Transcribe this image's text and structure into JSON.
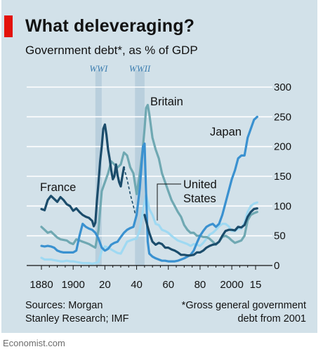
{
  "header": {
    "title": "What deleveraging?",
    "subtitle": "Government debt*, as % of GDP"
  },
  "footer": {
    "sources": "Sources: Morgan\nStanley Research; IMF",
    "footnote": "*Gross general government\ndebt from 2001",
    "brand": "Economist.com"
  },
  "colors": {
    "background": "#d2e1e9",
    "accent": "#e3120b",
    "war_band": "#b9cfdd",
    "gridline": "#ffffff",
    "france": "#1b4c6b",
    "britain": "#6fa8b2",
    "japan": "#3a91d0",
    "united_states": "#9fd9f2"
  },
  "chart_data": {
    "type": "line",
    "title": "What deleveraging?",
    "subtitle": "Government debt*, as % of GDP",
    "xlabel": "",
    "ylabel": "",
    "xlim": [
      1875,
      2020
    ],
    "ylim": [
      0,
      300
    ],
    "x_tick_labels": [
      "1880",
      "1900",
      "20",
      "40",
      "60",
      "80",
      "2000",
      "15"
    ],
    "x_tick_years": [
      1880,
      1900,
      1920,
      1940,
      1960,
      1980,
      2000,
      2015
    ],
    "y_ticks": [
      0,
      50,
      100,
      150,
      200,
      250,
      300
    ],
    "y_axis_side": "right",
    "grid": "horizontal",
    "shaded_periods": [
      {
        "label": "WWI",
        "start": 1914,
        "end": 1918
      },
      {
        "label": "WWII",
        "start": 1939,
        "end": 1945
      }
    ],
    "series": [
      {
        "name": "France",
        "points": [
          [
            1880,
            95
          ],
          [
            1882,
            93
          ],
          [
            1884,
            110
          ],
          [
            1886,
            117
          ],
          [
            1888,
            112
          ],
          [
            1890,
            107
          ],
          [
            1892,
            115
          ],
          [
            1894,
            110
          ],
          [
            1896,
            103
          ],
          [
            1898,
            100
          ],
          [
            1900,
            92
          ],
          [
            1902,
            96
          ],
          [
            1904,
            90
          ],
          [
            1906,
            85
          ],
          [
            1908,
            82
          ],
          [
            1910,
            80
          ],
          [
            1912,
            75
          ],
          [
            1913,
            66
          ],
          [
            1914,
            72
          ],
          [
            1915,
            110
          ],
          [
            1916,
            140
          ],
          [
            1917,
            175
          ],
          [
            1918,
            200
          ],
          [
            1919,
            230
          ],
          [
            1920,
            237
          ],
          [
            1921,
            220
          ],
          [
            1922,
            195
          ],
          [
            1923,
            180
          ],
          [
            1924,
            160
          ],
          [
            1925,
            145
          ],
          [
            1926,
            150
          ],
          [
            1927,
            170
          ],
          [
            1928,
            152
          ],
          [
            1929,
            140
          ],
          [
            1930,
            133
          ],
          [
            1931,
            150
          ],
          [
            1932,
            165
          ]
        ],
        "dashed_points": [
          [
            1932,
            165
          ],
          [
            1934,
            145
          ],
          [
            1936,
            120
          ],
          [
            1938,
            100
          ],
          [
            1939,
            88
          ]
        ],
        "points_2": [
          [
            1945,
            85
          ],
          [
            1946,
            75
          ],
          [
            1948,
            55
          ],
          [
            1950,
            40
          ],
          [
            1952,
            35
          ],
          [
            1954,
            38
          ],
          [
            1956,
            36
          ],
          [
            1958,
            30
          ],
          [
            1960,
            30
          ],
          [
            1962,
            27
          ],
          [
            1964,
            25
          ],
          [
            1966,
            22
          ],
          [
            1968,
            18
          ],
          [
            1970,
            18
          ],
          [
            1972,
            17
          ],
          [
            1974,
            17
          ],
          [
            1976,
            18
          ],
          [
            1978,
            22
          ],
          [
            1980,
            22
          ],
          [
            1982,
            25
          ],
          [
            1984,
            30
          ],
          [
            1986,
            33
          ],
          [
            1988,
            35
          ],
          [
            1990,
            36
          ],
          [
            1992,
            40
          ],
          [
            1994,
            50
          ],
          [
            1996,
            58
          ],
          [
            1998,
            60
          ],
          [
            2000,
            60
          ],
          [
            2002,
            59
          ],
          [
            2004,
            65
          ],
          [
            2006,
            64
          ],
          [
            2008,
            68
          ],
          [
            2010,
            82
          ],
          [
            2012,
            90
          ],
          [
            2014,
            95
          ],
          [
            2016,
            96
          ]
        ]
      },
      {
        "name": "Britain",
        "points": [
          [
            1880,
            65
          ],
          [
            1882,
            60
          ],
          [
            1884,
            55
          ],
          [
            1886,
            57
          ],
          [
            1888,
            52
          ],
          [
            1890,
            47
          ],
          [
            1892,
            44
          ],
          [
            1894,
            43
          ],
          [
            1896,
            42
          ],
          [
            1898,
            38
          ],
          [
            1900,
            36
          ],
          [
            1902,
            44
          ],
          [
            1904,
            42
          ],
          [
            1906,
            40
          ],
          [
            1908,
            38
          ],
          [
            1910,
            36
          ],
          [
            1912,
            33
          ],
          [
            1914,
            30
          ],
          [
            1916,
            60
          ],
          [
            1918,
            125
          ],
          [
            1920,
            140
          ],
          [
            1922,
            155
          ],
          [
            1924,
            175
          ],
          [
            1926,
            170
          ],
          [
            1928,
            165
          ],
          [
            1930,
            170
          ],
          [
            1932,
            190
          ],
          [
            1934,
            185
          ],
          [
            1936,
            165
          ],
          [
            1938,
            155
          ],
          [
            1940,
            120
          ],
          [
            1942,
            155
          ],
          [
            1944,
            200
          ],
          [
            1945,
            230
          ],
          [
            1946,
            265
          ],
          [
            1947,
            270
          ],
          [
            1948,
            255
          ],
          [
            1950,
            215
          ],
          [
            1952,
            195
          ],
          [
            1954,
            180
          ],
          [
            1956,
            155
          ],
          [
            1958,
            140
          ],
          [
            1960,
            125
          ],
          [
            1962,
            110
          ],
          [
            1964,
            100
          ],
          [
            1966,
            90
          ],
          [
            1968,
            82
          ],
          [
            1970,
            68
          ],
          [
            1972,
            60
          ],
          [
            1974,
            55
          ],
          [
            1976,
            55
          ],
          [
            1978,
            50
          ],
          [
            1980,
            50
          ],
          [
            1982,
            48
          ],
          [
            1984,
            48
          ],
          [
            1986,
            45
          ],
          [
            1988,
            40
          ],
          [
            1990,
            35
          ],
          [
            1992,
            40
          ],
          [
            1994,
            48
          ],
          [
            1996,
            50
          ],
          [
            1998,
            47
          ],
          [
            2000,
            42
          ],
          [
            2002,
            38
          ],
          [
            2004,
            40
          ],
          [
            2006,
            42
          ],
          [
            2008,
            50
          ],
          [
            2010,
            76
          ],
          [
            2012,
            85
          ],
          [
            2014,
            88
          ],
          [
            2016,
            90
          ]
        ]
      },
      {
        "name": "Japan",
        "points": [
          [
            1880,
            33
          ],
          [
            1882,
            32
          ],
          [
            1884,
            33
          ],
          [
            1886,
            32
          ],
          [
            1888,
            30
          ],
          [
            1890,
            25
          ],
          [
            1892,
            23
          ],
          [
            1894,
            22
          ],
          [
            1896,
            22
          ],
          [
            1898,
            22
          ],
          [
            1900,
            22
          ],
          [
            1902,
            25
          ],
          [
            1904,
            50
          ],
          [
            1906,
            70
          ],
          [
            1908,
            65
          ],
          [
            1910,
            62
          ],
          [
            1912,
            60
          ],
          [
            1914,
            55
          ],
          [
            1916,
            45
          ],
          [
            1918,
            30
          ],
          [
            1920,
            25
          ],
          [
            1922,
            28
          ],
          [
            1924,
            35
          ],
          [
            1926,
            38
          ],
          [
            1928,
            40
          ],
          [
            1930,
            48
          ],
          [
            1932,
            55
          ],
          [
            1934,
            60
          ],
          [
            1936,
            63
          ],
          [
            1938,
            65
          ],
          [
            1940,
            85
          ],
          [
            1942,
            130
          ],
          [
            1944,
            200
          ],
          [
            1945,
            205
          ],
          [
            1946,
            120
          ],
          [
            1947,
            40
          ],
          [
            1948,
            20
          ],
          [
            1950,
            15
          ],
          [
            1952,
            12
          ],
          [
            1954,
            10
          ],
          [
            1956,
            8
          ],
          [
            1958,
            8
          ],
          [
            1960,
            7
          ],
          [
            1962,
            7
          ],
          [
            1964,
            7
          ],
          [
            1966,
            8
          ],
          [
            1968,
            10
          ],
          [
            1970,
            12
          ],
          [
            1972,
            15
          ],
          [
            1974,
            18
          ],
          [
            1976,
            25
          ],
          [
            1978,
            38
          ],
          [
            1980,
            50
          ],
          [
            1982,
            58
          ],
          [
            1984,
            65
          ],
          [
            1986,
            68
          ],
          [
            1988,
            70
          ],
          [
            1990,
            65
          ],
          [
            1992,
            70
          ],
          [
            1994,
            85
          ],
          [
            1996,
            105
          ],
          [
            1998,
            125
          ],
          [
            2000,
            145
          ],
          [
            2002,
            160
          ],
          [
            2004,
            180
          ],
          [
            2006,
            185
          ],
          [
            2008,
            185
          ],
          [
            2010,
            215
          ],
          [
            2012,
            230
          ],
          [
            2014,
            245
          ],
          [
            2016,
            250
          ]
        ]
      },
      {
        "name": "United States",
        "points": [
          [
            1880,
            13
          ],
          [
            1882,
            10
          ],
          [
            1884,
            10
          ],
          [
            1886,
            10
          ],
          [
            1888,
            9
          ],
          [
            1890,
            8
          ],
          [
            1892,
            7
          ],
          [
            1894,
            7
          ],
          [
            1896,
            8
          ],
          [
            1898,
            7
          ],
          [
            1900,
            7
          ],
          [
            1902,
            6
          ],
          [
            1904,
            5
          ],
          [
            1906,
            4
          ],
          [
            1908,
            4
          ],
          [
            1910,
            4
          ],
          [
            1912,
            3
          ],
          [
            1914,
            4
          ],
          [
            1916,
            6
          ],
          [
            1918,
            25
          ],
          [
            1920,
            32
          ],
          [
            1922,
            30
          ],
          [
            1924,
            27
          ],
          [
            1926,
            24
          ],
          [
            1928,
            21
          ],
          [
            1930,
            20
          ],
          [
            1932,
            30
          ],
          [
            1934,
            40
          ],
          [
            1936,
            42
          ],
          [
            1938,
            44
          ],
          [
            1940,
            45
          ],
          [
            1942,
            60
          ],
          [
            1944,
            92
          ],
          [
            1946,
            120
          ],
          [
            1948,
            95
          ],
          [
            1950,
            85
          ],
          [
            1952,
            70
          ],
          [
            1954,
            68
          ],
          [
            1956,
            60
          ],
          [
            1958,
            58
          ],
          [
            1960,
            55
          ],
          [
            1962,
            50
          ],
          [
            1964,
            46
          ],
          [
            1966,
            42
          ],
          [
            1968,
            40
          ],
          [
            1970,
            38
          ],
          [
            1972,
            36
          ],
          [
            1974,
            33
          ],
          [
            1976,
            36
          ],
          [
            1978,
            35
          ],
          [
            1980,
            33
          ],
          [
            1982,
            38
          ],
          [
            1984,
            45
          ],
          [
            1986,
            52
          ],
          [
            1988,
            55
          ],
          [
            1990,
            60
          ],
          [
            1992,
            66
          ],
          [
            1994,
            70
          ],
          [
            1996,
            70
          ],
          [
            1998,
            66
          ],
          [
            2000,
            58
          ],
          [
            2002,
            58
          ],
          [
            2004,
            62
          ],
          [
            2006,
            62
          ],
          [
            2008,
            72
          ],
          [
            2010,
            90
          ],
          [
            2012,
            100
          ],
          [
            2014,
            104
          ],
          [
            2016,
            106
          ]
        ]
      }
    ],
    "annotations": [
      {
        "text": "France",
        "series": "France"
      },
      {
        "text": "Britain",
        "series": "Britain"
      },
      {
        "text": "Japan",
        "series": "Japan"
      },
      {
        "text": "United\nStates",
        "series": "United States"
      }
    ]
  }
}
